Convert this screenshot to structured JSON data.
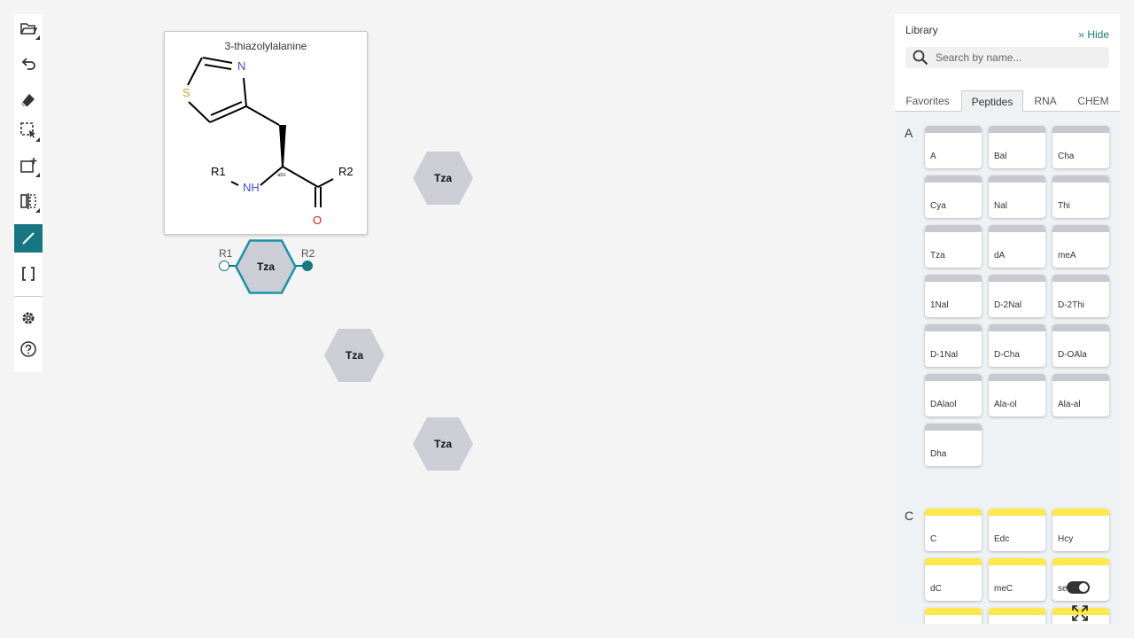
{
  "toolbar": {
    "tools": [
      "open-icon",
      "undo-icon",
      "eraser-icon",
      "select-icon",
      "add-monomer-icon",
      "flip-icon",
      "bond-icon",
      "brackets-icon",
      "settings-icon",
      "help-icon"
    ],
    "active_tool": "bond-icon",
    "accent_color": "#167782"
  },
  "canvas": {
    "preview": {
      "title": "3-thiazolylalanine",
      "atoms": {
        "s": "S",
        "n": "N",
        "nh": "NH",
        "o": "O",
        "r1": "R1",
        "r2": "R2",
        "abs": "abs"
      }
    },
    "monomers": [
      {
        "label": "Tza",
        "selected": false
      },
      {
        "label": "Tza",
        "selected": true
      },
      {
        "label": "Tza",
        "selected": false
      },
      {
        "label": "Tza",
        "selected": false
      }
    ],
    "selected_rgroups": {
      "r1": "R1",
      "r2": "R2"
    }
  },
  "library": {
    "title": "Library",
    "hide_label": "Hide",
    "search_placeholder": "Search by name...",
    "tabs": [
      "Favorites",
      "Peptides",
      "RNA",
      "CHEM"
    ],
    "active_tab": "Peptides",
    "sections": [
      {
        "letter": "A",
        "color": "#c8c8d0",
        "items": [
          "A",
          "Bal",
          "Cha",
          "Cya",
          "Nal",
          "Thi",
          "Tza",
          "dA",
          "meA",
          "1Nal",
          "D-2Nal",
          "D-2Thi",
          "D-1Nal",
          "D-Cha",
          "D-OAla",
          "DAlaol",
          "Ala-ol",
          "Ala-al",
          "Dha"
        ]
      },
      {
        "letter": "C",
        "color": "#fee94a",
        "items": [
          "C",
          "Edc",
          "Hcy",
          "dC",
          "meC",
          "se",
          "",
          "",
          ""
        ]
      }
    ]
  }
}
